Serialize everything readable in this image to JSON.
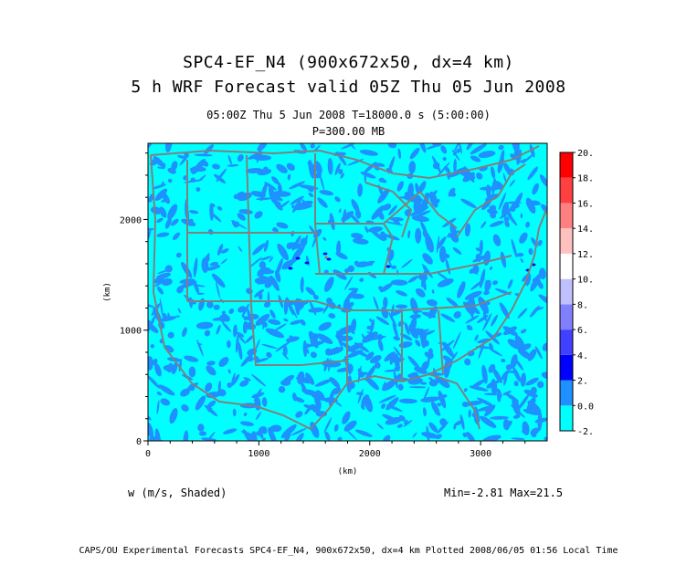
{
  "header": {
    "title_line1": "SPC4-EF_N4 (900x672x50, dx=4 km)",
    "title_line2": "5 h WRF Forecast valid 05Z Thu 05 Jun 2008",
    "time_line": "05:00Z Thu  5 Jun 2008    T=18000.0 s (5:00:00)",
    "level_line": "P=300.00 MB"
  },
  "variable_label": "w (m/s, Shaded)",
  "minmax_label": "Min=-2.81 Max=21.5",
  "footer": "CAPS/OU Experimental Forecasts  SPC4-EF_N4, 900x672x50, dx=4 km  Plotted 2008/06/05 01:56 Local Time",
  "colors": {
    "background_field": "#00ffff",
    "map_lines": "#808080",
    "scale": [
      "#00ffff",
      "#1e90ff",
      "#0000ff",
      "#4040ff",
      "#8080ff",
      "#c0c0ff",
      "#ffffff",
      "#ffc0c0",
      "#ff8080",
      "#ff4040",
      "#ff0000"
    ]
  },
  "chart_data": {
    "type": "heatmap",
    "xlabel": "(km)",
    "ylabel": "(km)",
    "xlim": [
      0,
      3600
    ],
    "ylim": [
      0,
      2688
    ],
    "xticks": [
      0,
      1000,
      2000,
      3000
    ],
    "yticks": [
      0,
      1000,
      2000
    ],
    "xtick_labels": [
      "0",
      "1000",
      "2000",
      "3000"
    ],
    "ytick_labels": [
      "0",
      "1000",
      "2000"
    ],
    "colorbar": {
      "labels": [
        "-2.",
        "0.0",
        "2.",
        "4.",
        "6.",
        "8.",
        "10.",
        "12.",
        "14.",
        "16.",
        "18.",
        "20."
      ],
      "colors": [
        "#00ffff",
        "#1e90ff",
        "#0000ff",
        "#4040ff",
        "#8080ff",
        "#c0c0ff",
        "#ffffff",
        "#ffc0c0",
        "#ff8080",
        "#ff4040",
        "#ff0000"
      ]
    },
    "min": -2.81,
    "max": 21.5
  }
}
